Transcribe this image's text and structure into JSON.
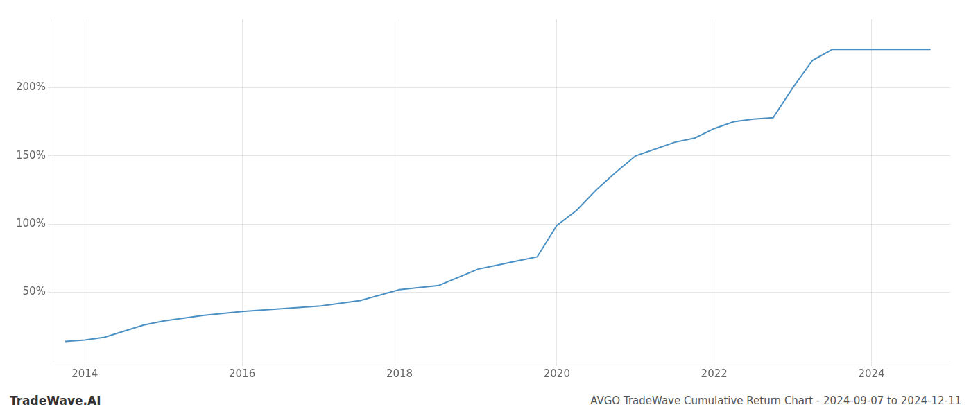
{
  "chart_data": {
    "type": "line",
    "title": "AVGO TradeWave Cumulative Return Chart - 2024-09-07 to 2024-12-11",
    "annotations": [
      "TradeWave.AI"
    ],
    "x": [
      2013.75,
      2014.0,
      2014.25,
      2014.75,
      2015.0,
      2015.5,
      2016.0,
      2016.5,
      2017.0,
      2017.5,
      2018.0,
      2018.5,
      2019.0,
      2019.25,
      2019.5,
      2019.75,
      2020.0,
      2020.25,
      2020.5,
      2020.75,
      2021.0,
      2021.25,
      2021.5,
      2021.75,
      2022.0,
      2022.25,
      2022.5,
      2022.75,
      2023.0,
      2023.25,
      2023.5,
      2023.75,
      2024.0,
      2024.75
    ],
    "values": [
      14,
      15,
      17,
      26,
      29,
      33,
      36,
      38,
      40,
      44,
      52,
      55,
      67,
      70,
      73,
      76,
      99,
      110,
      125,
      138,
      150,
      155,
      160,
      163,
      170,
      175,
      177,
      178,
      200,
      220,
      228,
      228,
      228,
      228
    ],
    "color": "#4a90c4",
    "xlim": [
      2013.6,
      2025.0
    ],
    "ylim": [
      0,
      250
    ],
    "xticks": [
      2014,
      2016,
      2018,
      2020,
      2022,
      2024
    ],
    "yticks": [
      {
        "value": 50,
        "label": "50%"
      },
      {
        "value": 100,
        "label": "100%"
      },
      {
        "value": 150,
        "label": "150%"
      },
      {
        "value": 200,
        "label": "200%"
      }
    ],
    "grid": true
  }
}
